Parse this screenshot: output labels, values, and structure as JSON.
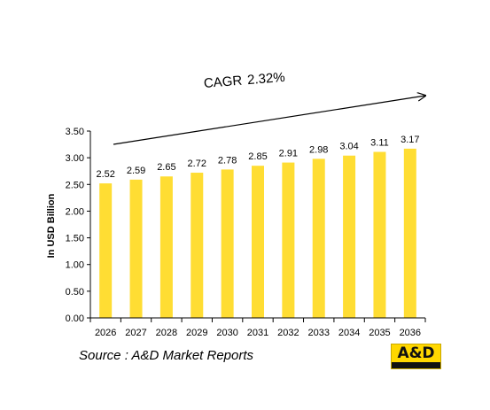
{
  "chart_data": {
    "type": "bar",
    "categories": [
      "2026",
      "2027",
      "2028",
      "2029",
      "2030",
      "2031",
      "2032",
      "2033",
      "2034",
      "2035",
      "2036"
    ],
    "values": [
      2.52,
      2.59,
      2.65,
      2.72,
      2.78,
      2.85,
      2.91,
      2.98,
      3.04,
      3.11,
      3.17
    ],
    "data_labels": [
      "2.52",
      "2.59",
      "2.65",
      "2.72",
      "2.78",
      "2.85",
      "2.91",
      "2.98",
      "3.04",
      "3.11",
      "3.17"
    ],
    "title": "",
    "xlabel": "",
    "ylabel": "In USD Billion",
    "ylim": [
      0,
      3.5
    ],
    "yticks": [
      "0.00",
      "0.50",
      "1.00",
      "1.50",
      "2.00",
      "2.50",
      "3.00",
      "3.50"
    ],
    "grid": false,
    "bar_color": "#ffdd33",
    "annotation": {
      "cagr_label": "CAGR",
      "cagr_value": "2.32%"
    }
  },
  "footer": {
    "source": "Source : A&D Market Reports",
    "logo_text": "A&D"
  }
}
